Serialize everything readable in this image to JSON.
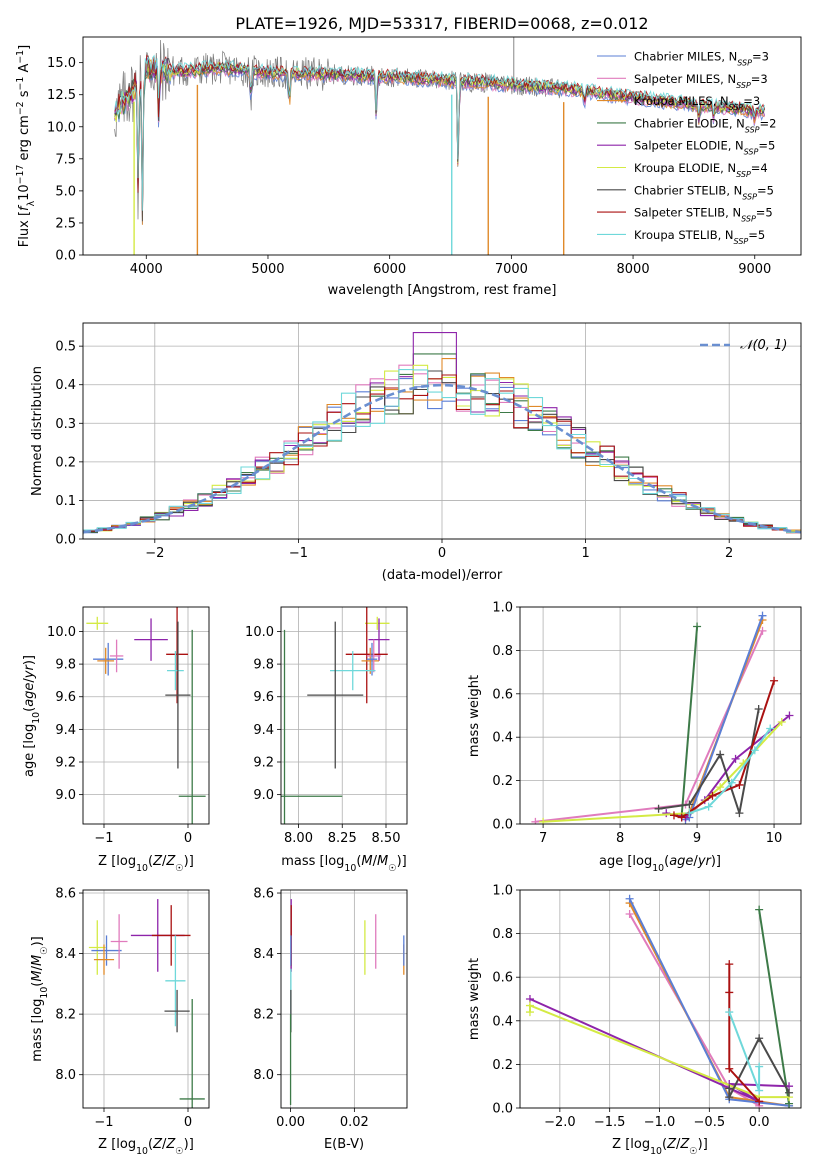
{
  "figure_title": "PLATE=1926, MJD=53317, FIBERID=0068, z=0.012",
  "colors": {
    "Chabrier MILES": "#5b7fd6",
    "Salpeter MILES": "#e07bbd",
    "Kroupa MILES": "#e08a2a",
    "Chabrier ELODIE": "#3d7a48",
    "Salpeter ELODIE": "#8e24aa",
    "Kroupa ELODIE": "#d4ea44",
    "Chabrier STELIB": "#4a4a4a",
    "Salpeter STELIB": "#aa1111",
    "Kroupa STELIB": "#6fd8da",
    "gaussian": "#6a8fd0",
    "spectrum": "#7a7a7a"
  },
  "chart_data": [
    {
      "id": "spectrum",
      "type": "line",
      "title": "PLATE=1926, MJD=53317, FIBERID=0068, z=0.012",
      "xlabel": "wavelength [Angstrom, rest frame]",
      "ylabel": "Flux [f_λ 10^-17 erg cm^-2 s^-1 A^-1]",
      "xlim": [
        3480,
        9380
      ],
      "ylim": [
        0,
        17
      ],
      "xticks": [
        4000,
        5000,
        6000,
        7000,
        8000,
        9000
      ],
      "yticks": [
        0.0,
        2.5,
        5.0,
        7.5,
        10.0,
        12.5,
        15.0
      ],
      "legend_position": "top-right",
      "grid": false,
      "series": [
        {
          "name": "Chabrier MILES, N_SSP=3",
          "key": "Chabrier MILES"
        },
        {
          "name": "Salpeter MILES, N_SSP=3",
          "key": "Salpeter MILES"
        },
        {
          "name": "Kroupa MILES, N_SSP=3",
          "key": "Kroupa MILES"
        },
        {
          "name": "Chabrier ELODIE, N_SSP=2",
          "key": "Chabrier ELODIE"
        },
        {
          "name": "Salpeter ELODIE, N_SSP=5",
          "key": "Salpeter ELODIE"
        },
        {
          "name": "Kroupa ELODIE, N_SSP=4",
          "key": "Kroupa ELODIE"
        },
        {
          "name": "Chabrier STELIB, N_SSP=5",
          "key": "Chabrier STELIB"
        },
        {
          "name": "Salpeter STELIB, N_SSP=5",
          "key": "Salpeter STELIB"
        },
        {
          "name": "Kroupa STELIB, N_SSP=5",
          "key": "Kroupa STELIB"
        }
      ],
      "continuum": {
        "x": [
          3740,
          3900,
          4000,
          4300,
          4600,
          5000,
          5500,
          6000,
          6500,
          7000,
          7500,
          8000,
          8500,
          9080
        ],
        "y": [
          11.0,
          13.0,
          14.5,
          14.3,
          14.6,
          14.2,
          14.1,
          13.9,
          13.6,
          13.3,
          12.9,
          12.3,
          11.7,
          11.2
        ]
      },
      "dips": [
        {
          "x": 3934,
          "y": 4.5
        },
        {
          "x": 3969,
          "y": 3.0
        },
        {
          "x": 4102,
          "y": 10.8
        },
        {
          "x": 4861,
          "y": 12.0
        },
        {
          "x": 5175,
          "y": 11.3
        },
        {
          "x": 5890,
          "y": 11.0
        },
        {
          "x": 6563,
          "y": 6.5
        },
        {
          "x": 7600,
          "y": 11.8
        },
        {
          "x": 8542,
          "y": 10.6
        },
        {
          "x": 8662,
          "y": 10.8
        },
        {
          "x": 9000,
          "y": 10.4
        }
      ],
      "spikes_to_zero": [
        {
          "x": 3900,
          "key": "Kroupa ELODIE"
        },
        {
          "x": 4420,
          "key": "Kroupa MILES"
        },
        {
          "x": 6510,
          "key": "Kroupa STELIB"
        },
        {
          "x": 6810,
          "key": "Kroupa MILES"
        },
        {
          "x": 7430,
          "key": "Kroupa MILES"
        }
      ]
    },
    {
      "id": "residuals",
      "type": "histogram",
      "xlabel": "(data-model)/error",
      "ylabel": "Normed distribution",
      "xlim": [
        -2.5,
        2.5
      ],
      "ylim": [
        0,
        0.56
      ],
      "xticks": [
        -2,
        -1,
        0,
        1,
        2
      ],
      "yticks": [
        0.0,
        0.1,
        0.2,
        0.3,
        0.4,
        0.5
      ],
      "grid": true,
      "bin_width": 0.1,
      "legend": [
        {
          "label": "𝒩(0, 1)",
          "key": "gaussian"
        }
      ],
      "gaussian": {
        "mean": 0,
        "sigma": 1
      }
    },
    {
      "id": "age-vs-Z",
      "type": "errorbar",
      "xlabel": "Z [log10(Z/Z☉)]",
      "ylabel": "age [log10(age/yr)]",
      "xlim": [
        -1.25,
        0.25
      ],
      "ylim": [
        8.82,
        10.15
      ],
      "xticks": [
        -1,
        0
      ],
      "yticks": [
        9.0,
        9.2,
        9.4,
        9.6,
        9.8,
        10.0
      ],
      "grid": true,
      "points": [
        {
          "key": "Kroupa ELODIE",
          "x": -1.08,
          "xerr": 0.13,
          "y": 10.05,
          "yerr": 0.04
        },
        {
          "key": "Chabrier MILES",
          "x": -0.95,
          "xerr": 0.18,
          "y": 9.83,
          "yerr": 0.1
        },
        {
          "key": "Kroupa MILES",
          "x": -0.98,
          "xerr": 0.1,
          "y": 9.82,
          "yerr": 0.08
        },
        {
          "key": "Salpeter MILES",
          "x": -0.85,
          "xerr": 0.08,
          "y": 9.85,
          "yerr": 0.1
        },
        {
          "key": "Salpeter ELODIE",
          "x": -0.44,
          "xerr": 0.2,
          "y": 9.95,
          "yerr": 0.13
        },
        {
          "key": "Salpeter STELIB",
          "x": -0.13,
          "xerr": 0.13,
          "y": 9.86,
          "yerr": 0.3
        },
        {
          "key": "Kroupa STELIB",
          "x": -0.15,
          "xerr": 0.1,
          "y": 9.76,
          "yerr": 0.12
        },
        {
          "key": "Chabrier STELIB",
          "x": -0.12,
          "xerr": 0.15,
          "y": 9.61,
          "yerr": 0.45
        },
        {
          "key": "Chabrier ELODIE",
          "x": 0.05,
          "xerr": 0.16,
          "y": 8.99,
          "yerr": 1.02
        }
      ]
    },
    {
      "id": "age-vs-mass",
      "type": "errorbar",
      "xlabel": "mass [log10(M/M☉)]",
      "ylabel": "",
      "xlim": [
        7.9,
        8.62
      ],
      "ylim": [
        8.82,
        10.15
      ],
      "xticks": [
        8.0,
        8.25,
        8.5
      ],
      "yticks": [
        9.0,
        9.2,
        9.4,
        9.6,
        9.8,
        10.0
      ],
      "grid": true,
      "points": [
        {
          "key": "Kroupa ELODIE",
          "x": 8.45,
          "xerr": 0.07,
          "y": 10.05,
          "yerr": 0.04
        },
        {
          "key": "Salpeter ELODIE",
          "x": 8.46,
          "xerr": 0.06,
          "y": 9.95,
          "yerr": 0.13
        },
        {
          "key": "Salpeter STELIB",
          "x": 8.39,
          "xerr": 0.12,
          "y": 9.86,
          "yerr": 0.3
        },
        {
          "key": "Kroupa MILES",
          "x": 8.41,
          "xerr": 0.05,
          "y": 9.82,
          "yerr": 0.08
        },
        {
          "key": "Salpeter MILES",
          "x": 8.43,
          "xerr": 0.04,
          "y": 9.85,
          "yerr": 0.1
        },
        {
          "key": "Chabrier MILES",
          "x": 8.42,
          "xerr": 0.03,
          "y": 9.83,
          "yerr": 0.1
        },
        {
          "key": "Kroupa STELIB",
          "x": 8.31,
          "xerr": 0.13,
          "y": 9.76,
          "yerr": 0.12
        },
        {
          "key": "Chabrier STELIB",
          "x": 8.21,
          "xerr": 0.16,
          "y": 9.61,
          "yerr": 0.45
        },
        {
          "key": "Chabrier ELODIE",
          "x": 7.92,
          "xerr": 0.33,
          "y": 8.99,
          "yerr": 1.02
        }
      ]
    },
    {
      "id": "weight-vs-age",
      "type": "line",
      "xlabel": "age [log10(age/yr)]",
      "ylabel": "mass weight",
      "xlim": [
        6.7,
        10.35
      ],
      "ylim": [
        0,
        1.0
      ],
      "xticks": [
        7,
        8,
        9,
        10
      ],
      "yticks": [
        0.0,
        0.2,
        0.4,
        0.6,
        0.8,
        1.0
      ],
      "grid": true,
      "series": [
        {
          "key": "Salpeter MILES",
          "x": [
            6.9,
            8.85,
            9.85
          ],
          "y": [
            0.01,
            0.09,
            0.89
          ]
        },
        {
          "key": "Kroupa MILES",
          "x": [
            8.85,
            8.9,
            9.85
          ],
          "y": [
            0.03,
            0.05,
            0.94
          ]
        },
        {
          "key": "Chabrier MILES",
          "x": [
            8.85,
            8.9,
            9.85
          ],
          "y": [
            0.02,
            0.03,
            0.96
          ]
        },
        {
          "key": "Chabrier ELODIE",
          "x": [
            8.8,
            9.0
          ],
          "y": [
            0.04,
            0.91
          ]
        },
        {
          "key": "Salpeter ELODIE",
          "x": [
            8.6,
            8.85,
            9.1,
            9.5,
            10.2
          ],
          "y": [
            0.05,
            0.03,
            0.11,
            0.3,
            0.5
          ]
        },
        {
          "key": "Kroupa ELODIE",
          "x": [
            7.0,
            8.9,
            9.3,
            9.6,
            10.1
          ],
          "y": [
            0.01,
            0.05,
            0.17,
            0.28,
            0.47
          ]
        },
        {
          "key": "Chabrier STELIB",
          "x": [
            8.5,
            8.9,
            9.3,
            9.55,
            9.8
          ],
          "y": [
            0.07,
            0.09,
            0.32,
            0.05,
            0.53
          ]
        },
        {
          "key": "Salpeter STELIB",
          "x": [
            8.7,
            8.8,
            9.2,
            9.55,
            10.0
          ],
          "y": [
            0.04,
            0.03,
            0.13,
            0.18,
            0.66
          ]
        },
        {
          "key": "Kroupa STELIB",
          "x": [
            8.9,
            9.15,
            9.45,
            9.75,
            9.95
          ],
          "y": [
            0.05,
            0.08,
            0.19,
            0.34,
            0.44
          ]
        }
      ]
    },
    {
      "id": "mass-vs-Z",
      "type": "errorbar",
      "xlabel": "Z [log10(Z/Z☉)]",
      "ylabel": "mass [log10(M/M☉)]",
      "xlim": [
        -1.25,
        0.25
      ],
      "ylim": [
        7.89,
        8.61
      ],
      "xticks": [
        -1,
        0
      ],
      "yticks": [
        8.0,
        8.2,
        8.4,
        8.6
      ],
      "grid": true,
      "points": [
        {
          "key": "Kroupa ELODIE",
          "x": -1.08,
          "xerr": 0.1,
          "y": 8.42,
          "yerr": 0.09
        },
        {
          "key": "Chabrier MILES",
          "x": -0.97,
          "xerr": 0.18,
          "y": 8.41,
          "yerr": 0.05
        },
        {
          "key": "Kroupa MILES",
          "x": -1.0,
          "xerr": 0.12,
          "y": 8.38,
          "yerr": 0.05
        },
        {
          "key": "Salpeter MILES",
          "x": -0.82,
          "xerr": 0.1,
          "y": 8.44,
          "yerr": 0.09
        },
        {
          "key": "Salpeter ELODIE",
          "x": -0.36,
          "xerr": 0.32,
          "y": 8.46,
          "yerr": 0.12
        },
        {
          "key": "Salpeter STELIB",
          "x": -0.2,
          "xerr": 0.23,
          "y": 8.46,
          "yerr": 0.1
        },
        {
          "key": "Kroupa STELIB",
          "x": -0.15,
          "xerr": 0.12,
          "y": 8.31,
          "yerr": 0.15
        },
        {
          "key": "Chabrier STELIB",
          "x": -0.13,
          "xerr": 0.15,
          "y": 8.21,
          "yerr": 0.07
        },
        {
          "key": "Chabrier ELODIE",
          "x": 0.05,
          "xerr": 0.15,
          "y": 7.92,
          "yerr": 0.33
        }
      ]
    },
    {
      "id": "mass-vs-EBV",
      "type": "errorbar",
      "xlabel": "E(B-V)",
      "ylabel": "",
      "xlim": [
        -0.003,
        0.0365
      ],
      "ylim": [
        7.89,
        8.61
      ],
      "xticks": [
        0.0,
        0.02
      ],
      "yticks": [
        8.0,
        8.2,
        8.4,
        8.6
      ],
      "grid": true,
      "points": [
        {
          "key": "Salpeter ELODIE",
          "x": 0.0002,
          "xerr": 0,
          "y": 8.46,
          "yerr": 0.12
        },
        {
          "key": "Salpeter STELIB",
          "x": 0.0002,
          "xerr": 0,
          "y": 8.46,
          "yerr": 0.1
        },
        {
          "key": "Chabrier MILES",
          "x": 0.0001,
          "xerr": 0,
          "y": 8.41,
          "yerr": 0.05
        },
        {
          "key": "Kroupa STELIB",
          "x": 0.0001,
          "xerr": 0,
          "y": 8.25,
          "yerr": 0.1
        },
        {
          "key": "Chabrier STELIB",
          "x": 0.0001,
          "xerr": 0,
          "y": 8.21,
          "yerr": 0.07
        },
        {
          "key": "Chabrier ELODIE",
          "x": 0.0,
          "xerr": 0,
          "y": 8.05,
          "yerr": 0.15
        },
        {
          "key": "Kroupa ELODIE",
          "x": 0.0233,
          "xerr": 0,
          "y": 8.42,
          "yerr": 0.09
        },
        {
          "key": "Salpeter MILES",
          "x": 0.0267,
          "xerr": 0,
          "y": 8.44,
          "yerr": 0.09
        },
        {
          "key": "Kroupa MILES",
          "x": 0.0355,
          "xerr": 0,
          "y": 8.38,
          "yerr": 0.05
        },
        {
          "key": "Chabrier MILES",
          "x": 0.0355,
          "xerr": 0,
          "y": 8.41,
          "yerr": 0.05
        }
      ]
    },
    {
      "id": "weight-vs-Z",
      "type": "line",
      "xlabel": "Z [log10(Z/Z☉)]",
      "ylabel": "mass weight",
      "xlim": [
        -2.4,
        0.42
      ],
      "ylim": [
        0,
        1.0
      ],
      "xticks": [
        -2.0,
        -1.5,
        -1.0,
        -0.5,
        0.0
      ],
      "yticks": [
        0.0,
        0.2,
        0.4,
        0.6,
        0.8,
        1.0
      ],
      "grid": true,
      "series": [
        {
          "key": "Salpeter MILES",
          "x": [
            -1.3,
            -0.3,
            0.0
          ],
          "y": [
            0.89,
            0.09,
            0.01
          ]
        },
        {
          "key": "Kroupa MILES",
          "x": [
            -1.3,
            -0.3,
            0.3
          ],
          "y": [
            0.94,
            0.05,
            0.01
          ]
        },
        {
          "key": "Chabrier MILES",
          "x": [
            -1.3,
            -0.3,
            0.3
          ],
          "y": [
            0.96,
            0.04,
            0.01
          ]
        },
        {
          "key": "Chabrier ELODIE",
          "x": [
            0.0,
            0.3
          ],
          "y": [
            0.91,
            0.02
          ]
        },
        {
          "key": "Salpeter ELODIE",
          "x": [
            -2.3,
            0.0,
            -0.3,
            0.3
          ],
          "y": [
            0.5,
            0.03,
            0.11,
            0.1
          ]
        },
        {
          "key": "Kroupa ELODIE",
          "x": [
            -2.3,
            -2.3,
            0.0,
            0.3
          ],
          "y": [
            0.44,
            0.47,
            0.05,
            0.05
          ]
        },
        {
          "key": "Chabrier STELIB",
          "x": [
            -0.3,
            -0.3,
            0.0,
            0.3
          ],
          "y": [
            0.09,
            0.05,
            0.32,
            0.07
          ]
        },
        {
          "key": "Salpeter STELIB",
          "x": [
            -0.3,
            -0.3,
            -0.3,
            0.0
          ],
          "y": [
            0.66,
            0.53,
            0.18,
            0.03
          ]
        },
        {
          "key": "Kroupa STELIB",
          "x": [
            -0.3,
            0.0,
            0.0
          ],
          "y": [
            0.44,
            0.08,
            0.19
          ]
        }
      ]
    }
  ]
}
